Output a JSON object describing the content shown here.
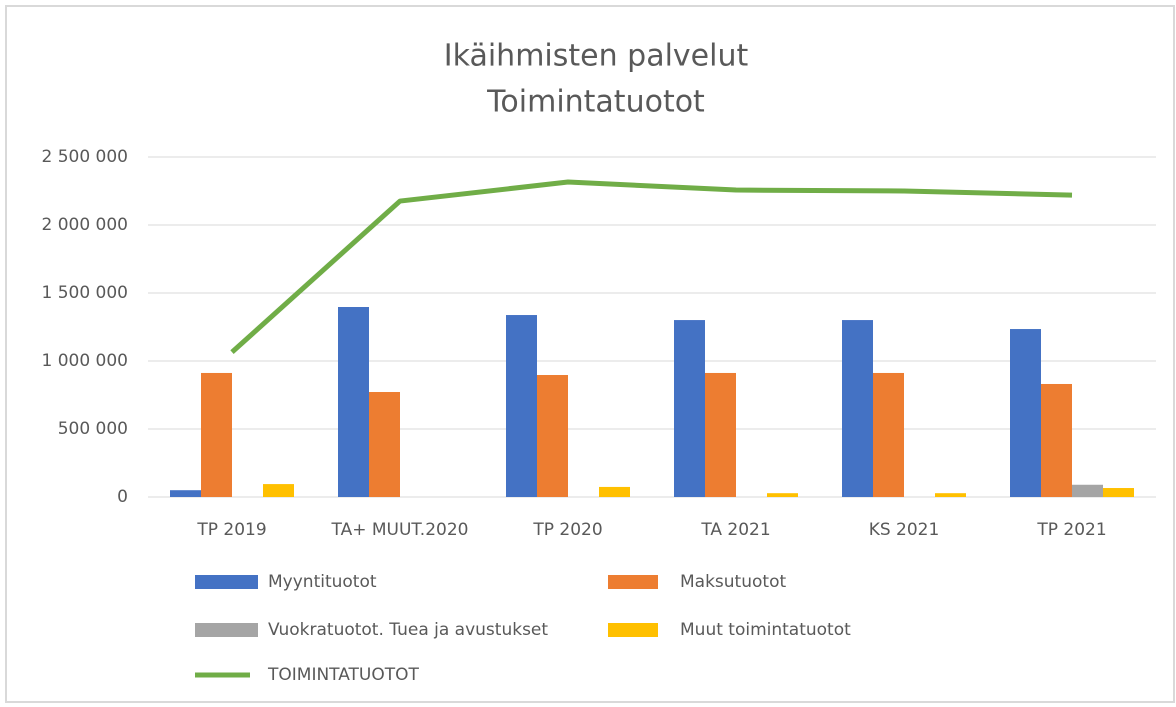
{
  "chart_data": {
    "type": "bar-line",
    "title": "Ikäihmisten palvelut",
    "subtitle": "Toimintatuotot",
    "categories": [
      "TP 2019",
      "TA+ MUUT.2020",
      "TP 2020",
      "TA 2021",
      "KS 2021",
      "TP 2021"
    ],
    "series": [
      {
        "name": "Myyntituotot",
        "color": "#4472c4",
        "kind": "bar",
        "values": [
          50000,
          1397000,
          1338000,
          1301000,
          1301000,
          1235000
        ]
      },
      {
        "name": "Maksutuotot",
        "color": "#ed7d31",
        "kind": "bar",
        "values": [
          912000,
          772000,
          897000,
          912000,
          912000,
          831000
        ]
      },
      {
        "name": "Vuokratuotot. Tuea ja avustukset",
        "color": "#a5a5a5",
        "kind": "bar",
        "values": [
          0,
          0,
          0,
          0,
          0,
          90000
        ]
      },
      {
        "name": "Muut toimintatuotot",
        "color": "#ffc000",
        "kind": "bar",
        "values": [
          95000,
          0,
          74000,
          28000,
          28000,
          66000
        ]
      },
      {
        "name": "TOIMINTATUOTOT",
        "color": "#70ad47",
        "kind": "line",
        "values": [
          1065000,
          2176000,
          2316000,
          2257000,
          2250000,
          2220000
        ]
      }
    ],
    "ylim": [
      0,
      2500000
    ],
    "yticks": [
      0,
      {
        "value": 500000,
        "label": "500 000"
      },
      {
        "value": 1000000,
        "label": "1 000 000"
      },
      {
        "value": 1500000,
        "label": "1 500 000"
      },
      {
        "value": 2000000,
        "label": "2 000 000"
      },
      {
        "value": 2500000,
        "label": "2 500 000"
      }
    ],
    "grid": true
  }
}
